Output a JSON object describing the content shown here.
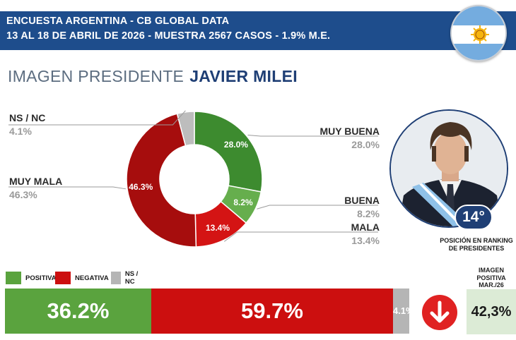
{
  "header": {
    "line1": "ENCUESTA ARGENTINA - CB GLOBAL DATA",
    "line2": "13 AL 18 DE ABRIL DE 2026 - MUESTRA 2567 CASOS - 1.9% M.E."
  },
  "title": {
    "prefix": "IMAGEN PRESIDENTE",
    "name": "JAVIER MILEI"
  },
  "chart_data": {
    "type": "pie",
    "donut": true,
    "title": "IMAGEN PRESIDENTE JAVIER MILEI",
    "categories": [
      "MUY BUENA",
      "BUENA",
      "MALA",
      "MUY MALA",
      "NS / NC"
    ],
    "values": [
      28.0,
      8.2,
      13.4,
      46.3,
      4.1
    ],
    "value_labels": [
      "28.0%",
      "8.2%",
      "13.4%",
      "46.3%",
      "4.1%"
    ],
    "colors": [
      "#3d8b2f",
      "#66ae4d",
      "#d41414",
      "#a60d0d",
      "#bdbdbd"
    ]
  },
  "legend": [
    {
      "label": "POSITIVA",
      "color": "#5aa33e"
    },
    {
      "label": "NEGATIVA",
      "color": "#cc0f0f"
    },
    {
      "label": "NS / NC",
      "color": "#b5b5b5"
    }
  ],
  "summary_bar": {
    "values": [
      36.2,
      59.7,
      4.1
    ],
    "labels": [
      "36.2%",
      "59.7%",
      "4.1%"
    ],
    "colors": [
      "#5aa33e",
      "#cc0f0f",
      "#b5b5b5"
    ]
  },
  "ranking": {
    "position": "14°",
    "caption_line1": "POSICIÓN EN RANKING",
    "caption_line2": "DE PRESIDENTES"
  },
  "trend": {
    "icon": "down-arrow-icon",
    "color": "#e02222"
  },
  "previous": {
    "caption_line1": "IMAGEN",
    "caption_line2": "POSITIVA",
    "caption_line3": "MAR./26",
    "value": "42,3%"
  }
}
